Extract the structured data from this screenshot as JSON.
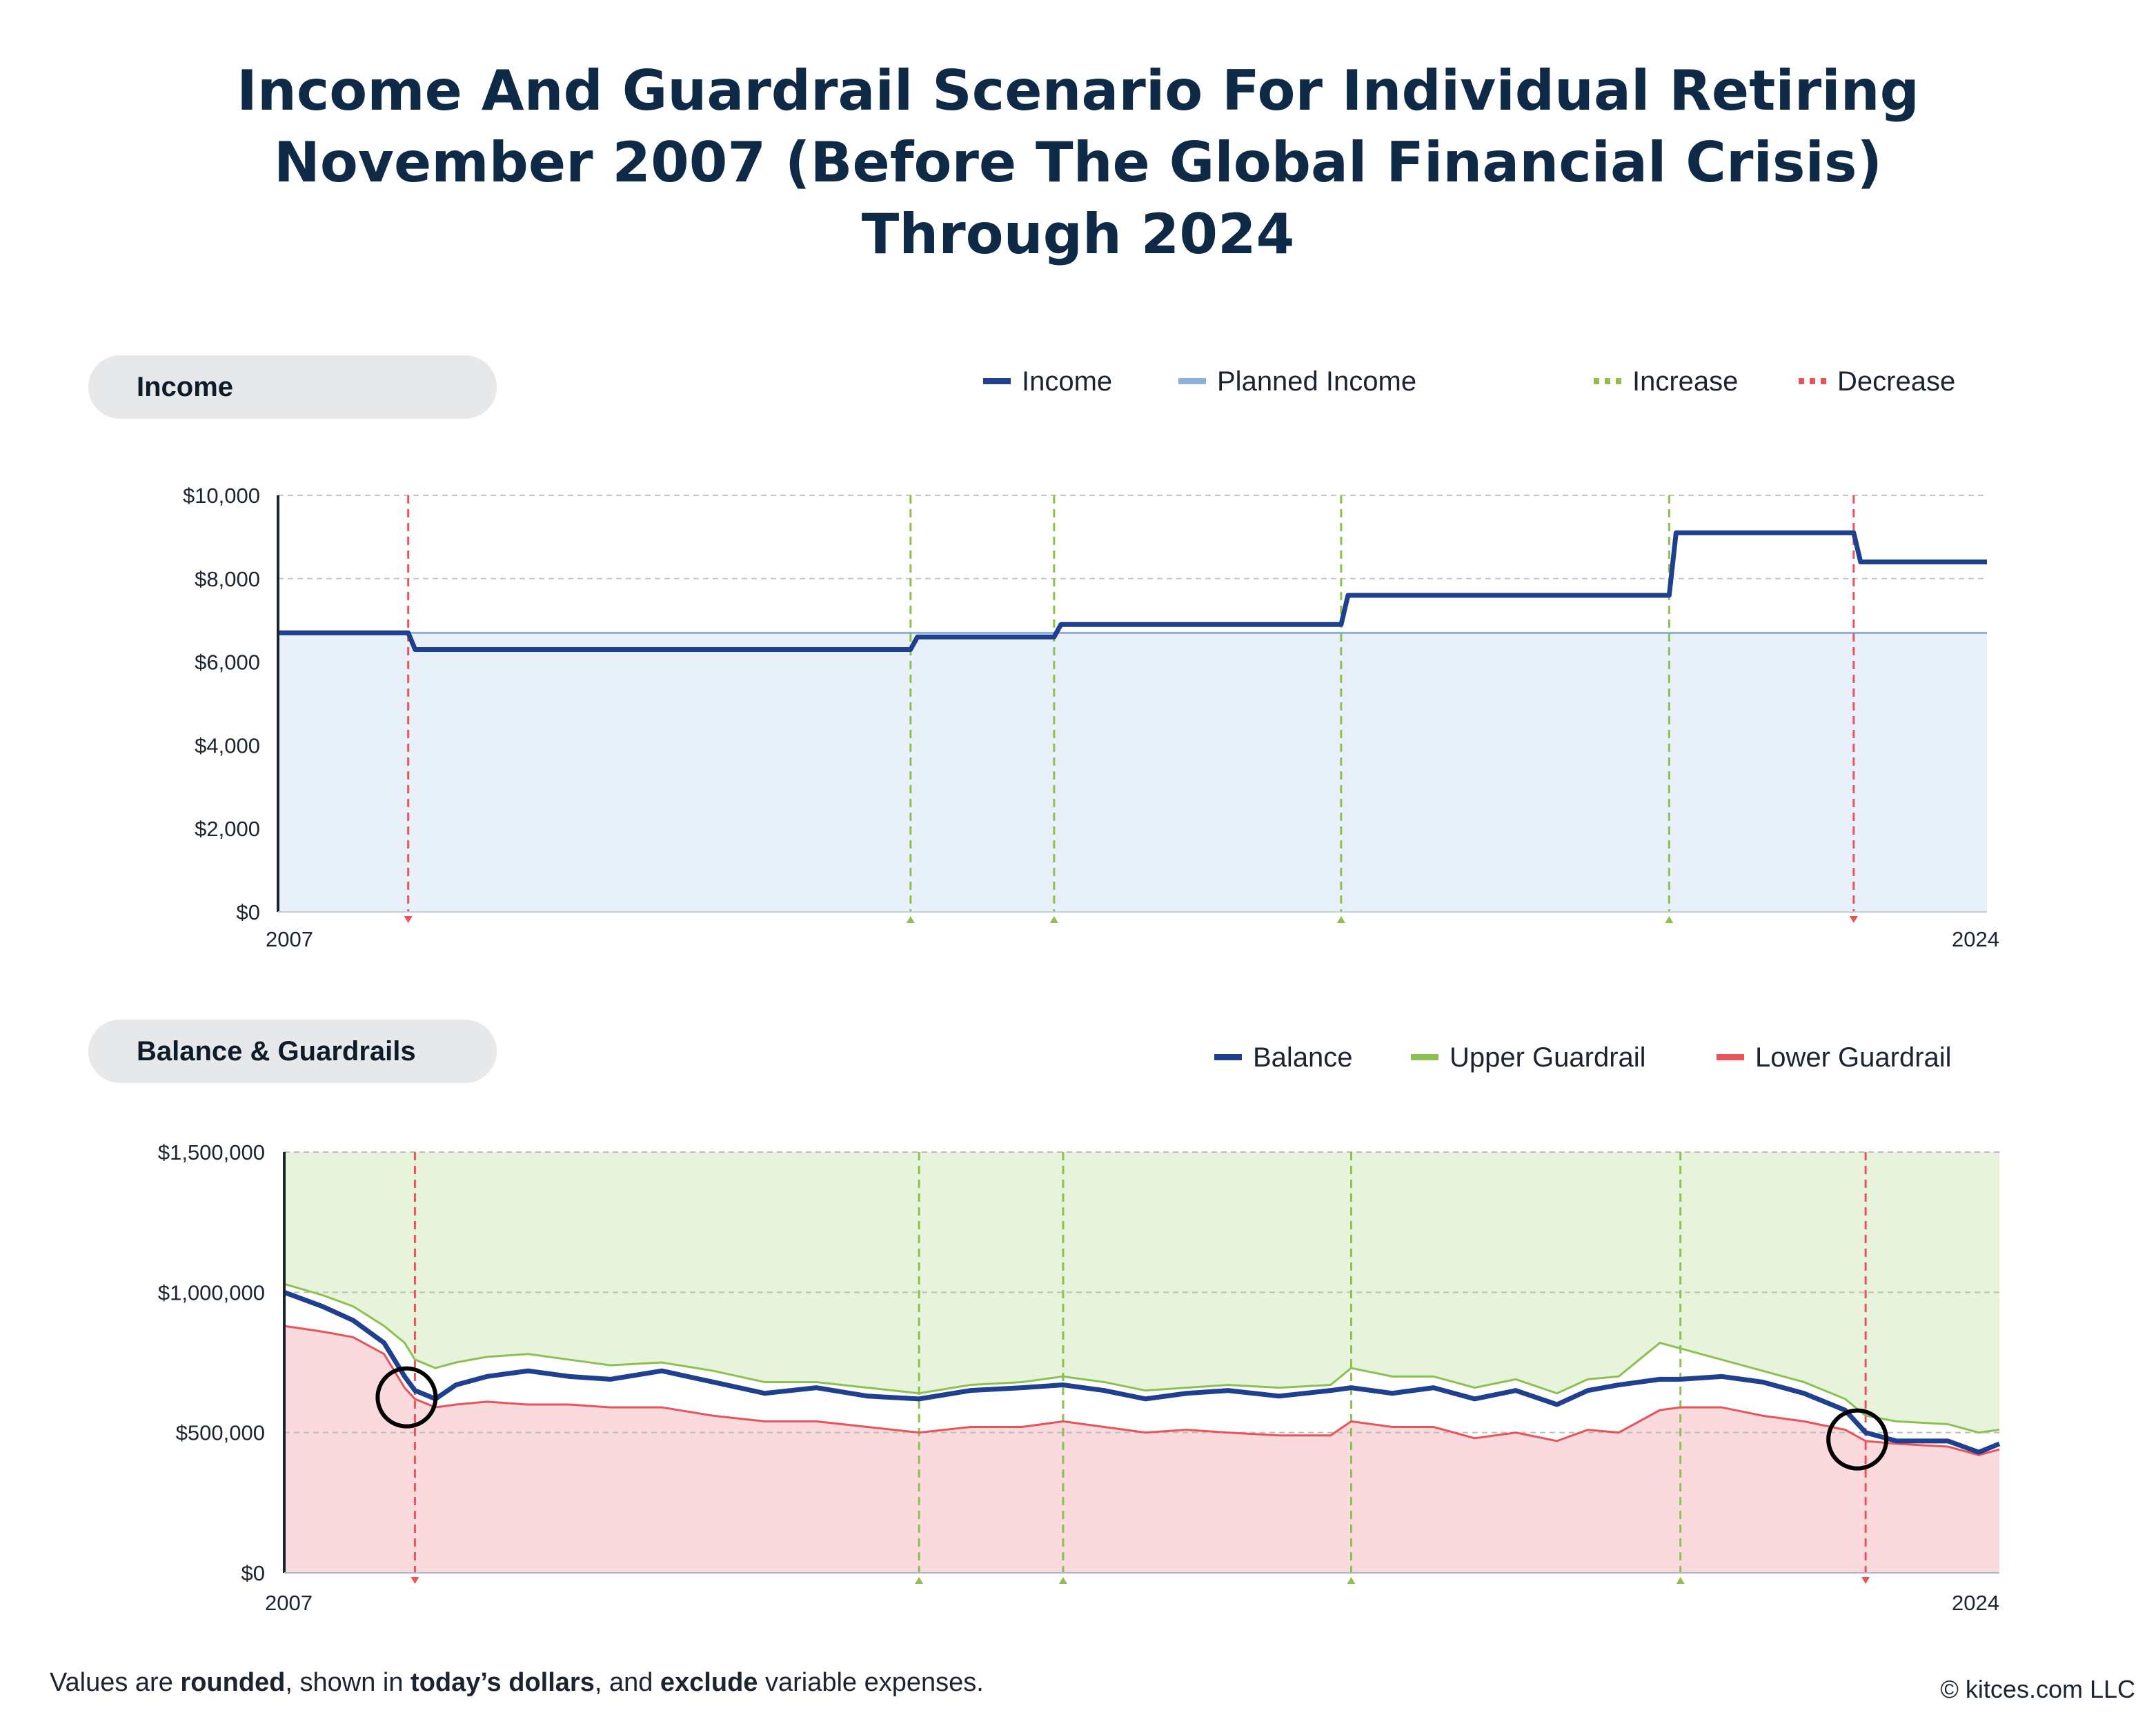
{
  "title": {
    "line1": "Income And Guardrail Scenario For Individual Retiring",
    "line2": "November 2007 (Before The Global Financial Crisis)",
    "line3": "Through 2024"
  },
  "panels": {
    "income_label": "Income",
    "balance_label": "Balance & Guardrails"
  },
  "legend_income": {
    "income": "Income",
    "planned": "Planned Income",
    "increase": "Increase",
    "decrease": "Decrease"
  },
  "legend_balance": {
    "balance": "Balance",
    "upper": "Upper Guardrail",
    "lower": "Lower Guardrail"
  },
  "footer": {
    "p1": "Values are ",
    "b1": "rounded",
    "p2": ", shown in ",
    "b2": "today’s dollars",
    "p3": ", and ",
    "b3": "exclude",
    "p4": " variable expenses.",
    "copyright": "© kitces.com LLC"
  },
  "colors": {
    "income": "#1f3f8f",
    "planned": "#8fb0dc",
    "planned_fill": "#e8f0fa",
    "increase": "#8cc152",
    "decrease": "#e8545a",
    "upper_fill": "#e8f3dc",
    "lower_fill": "#fadadd",
    "grid": "#c8c8c8"
  },
  "chart_data": [
    {
      "type": "line",
      "name": "income",
      "x_start": 2007.83,
      "x_end": 2024.5,
      "x_tick_labels": [
        "2007",
        "2024"
      ],
      "ylim": [
        0,
        10000
      ],
      "y_ticks": [
        0,
        2000,
        4000,
        6000,
        8000,
        10000
      ],
      "y_tick_labels": [
        "$0",
        "$2,000",
        "$4,000",
        "$6,000",
        "$8,000",
        "$10,000"
      ],
      "planned_income": 6700,
      "income_steps": [
        {
          "x": 2007.83,
          "y": 6700
        },
        {
          "x": 2009.1,
          "y": 6300
        },
        {
          "x": 2014.0,
          "y": 6600
        },
        {
          "x": 2015.4,
          "y": 6900
        },
        {
          "x": 2018.2,
          "y": 7600
        },
        {
          "x": 2021.4,
          "y": 9100
        },
        {
          "x": 2023.2,
          "y": 8400
        }
      ],
      "increase_markers": [
        2014.0,
        2015.4,
        2018.2,
        2021.4
      ],
      "decrease_markers": [
        2009.1,
        2023.2
      ]
    },
    {
      "type": "line",
      "name": "balance",
      "x_start": 2007.83,
      "x_end": 2024.5,
      "x_tick_labels": [
        "2007",
        "2024"
      ],
      "ylim": [
        0,
        1500000
      ],
      "y_ticks": [
        0,
        500000,
        1000000,
        1500000
      ],
      "y_tick_labels": [
        "$0",
        "$500,000",
        "$1,000,000",
        "$1,500,000"
      ],
      "increase_markers": [
        2014.0,
        2015.4,
        2018.2,
        2021.4
      ],
      "decrease_markers": [
        2009.1,
        2023.2
      ],
      "circles": [
        2009.1,
        2023.2
      ],
      "series": [
        {
          "name": "Balance",
          "x": [
            2007.83,
            2008.2,
            2008.5,
            2008.8,
            2009.0,
            2009.1,
            2009.3,
            2009.5,
            2009.8,
            2010.2,
            2010.6,
            2011.0,
            2011.5,
            2012.0,
            2012.5,
            2013.0,
            2013.5,
            2014.0,
            2014.5,
            2015.0,
            2015.4,
            2015.8,
            2016.2,
            2016.6,
            2017.0,
            2017.5,
            2018.0,
            2018.2,
            2018.6,
            2019.0,
            2019.4,
            2019.8,
            2020.2,
            2020.5,
            2020.8,
            2021.2,
            2021.4,
            2021.8,
            2022.2,
            2022.6,
            2023.0,
            2023.2,
            2023.5,
            2024.0,
            2024.3,
            2024.5
          ],
          "y": [
            1000000,
            950000,
            900000,
            820000,
            700000,
            650000,
            620000,
            670000,
            700000,
            720000,
            700000,
            690000,
            720000,
            680000,
            640000,
            660000,
            630000,
            620000,
            650000,
            660000,
            670000,
            650000,
            620000,
            640000,
            650000,
            630000,
            650000,
            660000,
            640000,
            660000,
            620000,
            650000,
            600000,
            650000,
            670000,
            690000,
            690000,
            700000,
            680000,
            640000,
            580000,
            500000,
            470000,
            470000,
            430000,
            460000
          ]
        },
        {
          "name": "Upper Guardrail",
          "x": [
            2007.83,
            2008.2,
            2008.5,
            2008.8,
            2009.0,
            2009.1,
            2009.3,
            2009.5,
            2009.8,
            2010.2,
            2010.6,
            2011.0,
            2011.5,
            2012.0,
            2012.5,
            2013.0,
            2013.5,
            2014.0,
            2014.5,
            2015.0,
            2015.4,
            2015.8,
            2016.2,
            2016.6,
            2017.0,
            2017.5,
            2018.0,
            2018.2,
            2018.6,
            2019.0,
            2019.4,
            2019.8,
            2020.2,
            2020.5,
            2020.8,
            2021.2,
            2021.4,
            2021.8,
            2022.2,
            2022.6,
            2023.0,
            2023.2,
            2023.5,
            2024.0,
            2024.3,
            2024.5
          ],
          "y": [
            1030000,
            990000,
            950000,
            880000,
            820000,
            760000,
            730000,
            750000,
            770000,
            780000,
            760000,
            740000,
            750000,
            720000,
            680000,
            680000,
            660000,
            640000,
            670000,
            680000,
            700000,
            680000,
            650000,
            660000,
            670000,
            660000,
            670000,
            730000,
            700000,
            700000,
            660000,
            690000,
            640000,
            690000,
            700000,
            820000,
            800000,
            760000,
            720000,
            680000,
            620000,
            560000,
            540000,
            530000,
            500000,
            510000
          ]
        },
        {
          "name": "Lower Guardrail",
          "x": [
            2007.83,
            2008.2,
            2008.5,
            2008.8,
            2009.0,
            2009.1,
            2009.3,
            2009.5,
            2009.8,
            2010.2,
            2010.6,
            2011.0,
            2011.5,
            2012.0,
            2012.5,
            2013.0,
            2013.5,
            2014.0,
            2014.5,
            2015.0,
            2015.4,
            2015.8,
            2016.2,
            2016.6,
            2017.0,
            2017.5,
            2018.0,
            2018.2,
            2018.6,
            2019.0,
            2019.4,
            2019.8,
            2020.2,
            2020.5,
            2020.8,
            2021.2,
            2021.4,
            2021.8,
            2022.2,
            2022.6,
            2023.0,
            2023.2,
            2023.5,
            2024.0,
            2024.3,
            2024.5
          ],
          "y": [
            880000,
            860000,
            840000,
            780000,
            660000,
            620000,
            590000,
            600000,
            610000,
            600000,
            600000,
            590000,
            590000,
            560000,
            540000,
            540000,
            520000,
            500000,
            520000,
            520000,
            540000,
            520000,
            500000,
            510000,
            500000,
            490000,
            490000,
            540000,
            520000,
            520000,
            480000,
            500000,
            470000,
            510000,
            500000,
            580000,
            590000,
            590000,
            560000,
            540000,
            510000,
            470000,
            460000,
            450000,
            420000,
            440000
          ]
        }
      ]
    }
  ]
}
